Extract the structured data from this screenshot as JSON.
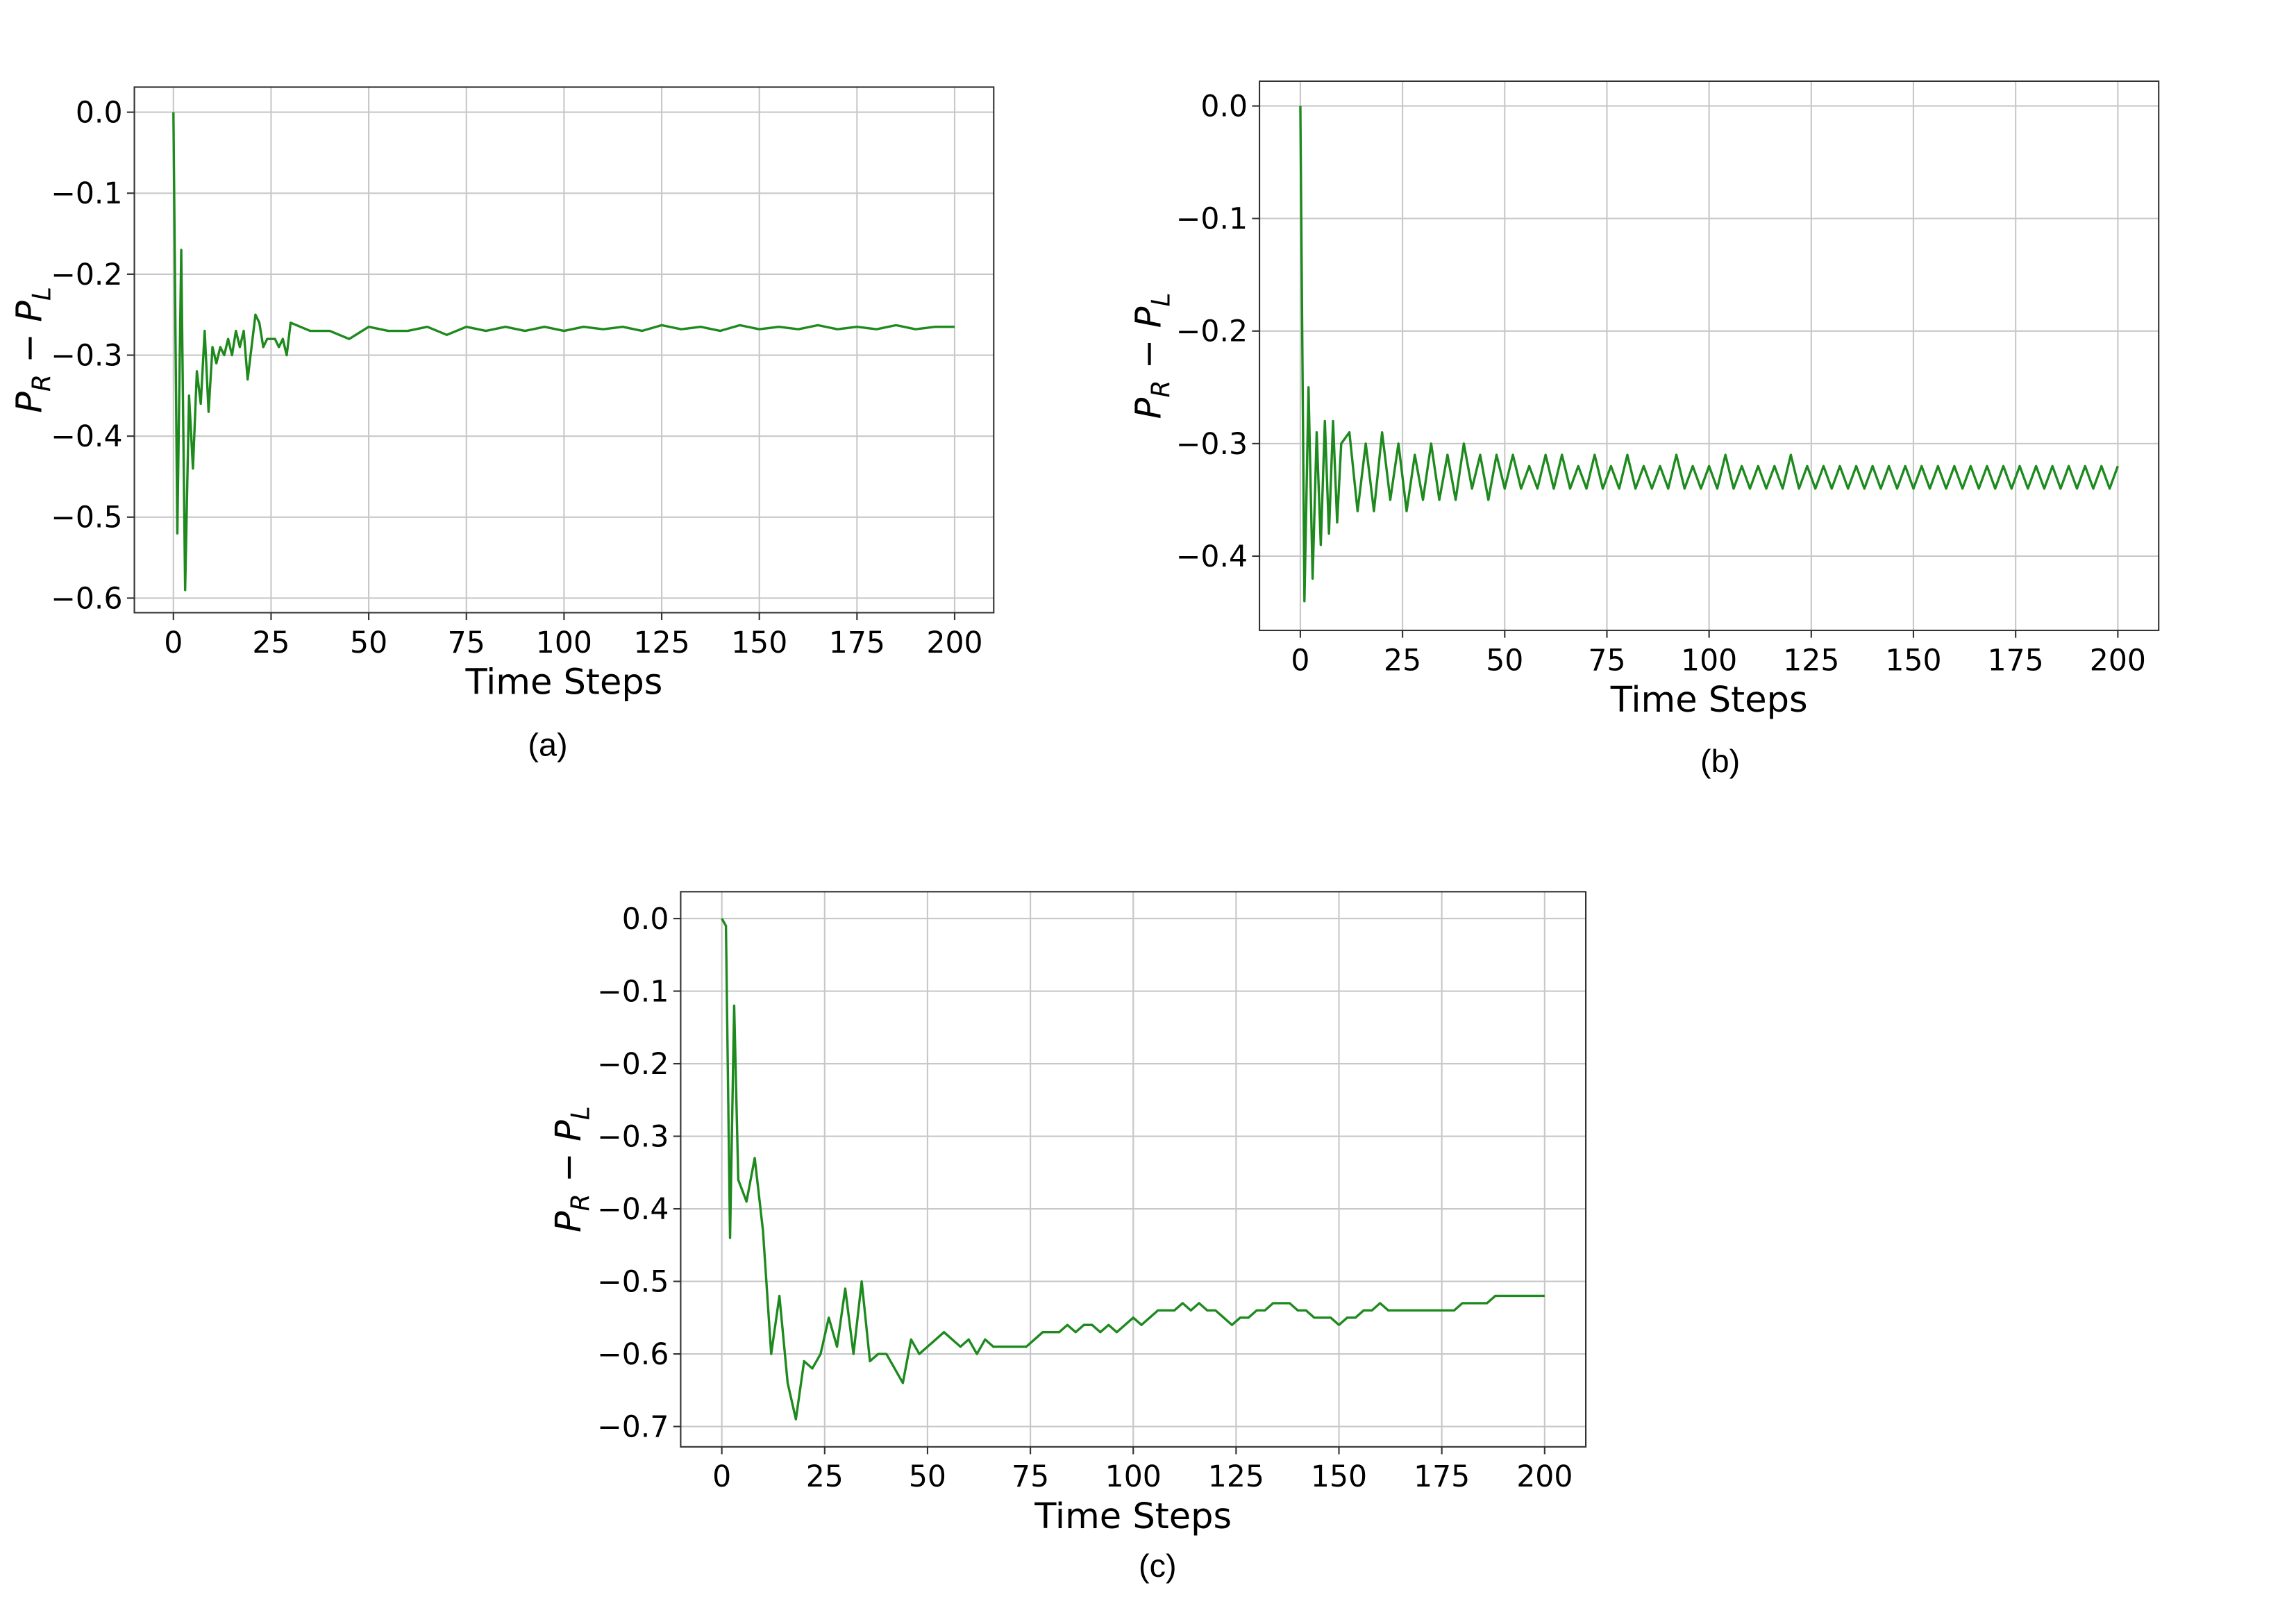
{
  "chart_data": [
    {
      "type": "line",
      "caption": "(a)",
      "xlabel": "Time Steps",
      "ylabel": [
        "P",
        "R",
        " − P",
        "L"
      ],
      "xlim": [
        -10,
        210
      ],
      "ylim": [
        -0.618,
        0.031
      ],
      "grid": true,
      "xticks": [
        0,
        25,
        50,
        75,
        100,
        125,
        150,
        175,
        200
      ],
      "yticks": [
        {
          "value": 0,
          "label": "0.0"
        },
        {
          "value": -0.1,
          "label": "−0.1"
        },
        {
          "value": -0.2,
          "label": "−0.2"
        },
        {
          "value": -0.3,
          "label": "−0.3"
        },
        {
          "value": -0.4,
          "label": "−0.4"
        },
        {
          "value": -0.5,
          "label": "−0.5"
        },
        {
          "value": -0.6,
          "label": "−0.6"
        }
      ],
      "x": [
        0,
        1,
        2,
        3,
        4,
        5,
        6,
        7,
        8,
        9,
        10,
        11,
        12,
        13,
        14,
        15,
        16,
        17,
        18,
        19,
        20,
        21,
        22,
        23,
        24,
        25,
        26,
        27,
        28,
        29,
        30,
        35,
        40,
        45,
        50,
        55,
        60,
        65,
        70,
        75,
        80,
        85,
        90,
        95,
        100,
        105,
        110,
        115,
        120,
        125,
        130,
        135,
        140,
        145,
        150,
        155,
        160,
        165,
        170,
        175,
        180,
        185,
        190,
        195,
        200
      ],
      "series": [
        {
          "color": "#1e8a1e",
          "values": [
            0,
            -0.52,
            -0.17,
            -0.59,
            -0.35,
            -0.44,
            -0.32,
            -0.36,
            -0.27,
            -0.37,
            -0.29,
            -0.31,
            -0.29,
            -0.3,
            -0.28,
            -0.3,
            -0.27,
            -0.29,
            -0.27,
            -0.33,
            -0.29,
            -0.25,
            -0.26,
            -0.29,
            -0.28,
            -0.28,
            -0.28,
            -0.29,
            -0.28,
            -0.3,
            -0.26,
            -0.27,
            -0.27,
            -0.28,
            -0.265,
            -0.27,
            -0.27,
            -0.265,
            -0.275,
            -0.265,
            -0.27,
            -0.265,
            -0.27,
            -0.265,
            -0.27,
            -0.265,
            -0.268,
            -0.265,
            -0.27,
            -0.263,
            -0.268,
            -0.265,
            -0.27,
            -0.263,
            -0.268,
            -0.265,
            -0.268,
            -0.263,
            -0.268,
            -0.265,
            -0.268,
            -0.263,
            -0.268,
            -0.265,
            -0.265
          ]
        }
      ]
    },
    {
      "type": "line",
      "caption": "(b)",
      "xlabel": "Time Steps",
      "ylabel": [
        "P",
        "R",
        " − P",
        "L"
      ],
      "xlim": [
        -10,
        210
      ],
      "ylim": [
        -0.466,
        0.022
      ],
      "grid": true,
      "xticks": [
        0,
        25,
        50,
        75,
        100,
        125,
        150,
        175,
        200
      ],
      "yticks": [
        {
          "value": 0,
          "label": "0.0"
        },
        {
          "value": -0.1,
          "label": "−0.1"
        },
        {
          "value": -0.2,
          "label": "−0.2"
        },
        {
          "value": -0.3,
          "label": "−0.3"
        },
        {
          "value": -0.4,
          "label": "−0.4"
        }
      ],
      "x": [
        0,
        1,
        2,
        3,
        4,
        5,
        6,
        7,
        8,
        9,
        10,
        12,
        14,
        16,
        18,
        20,
        22,
        24,
        26,
        28,
        30,
        32,
        34,
        36,
        38,
        40,
        42,
        44,
        46,
        48,
        50,
        52,
        54,
        56,
        58,
        60,
        62,
        64,
        66,
        68,
        70,
        72,
        74,
        76,
        78,
        80,
        82,
        84,
        86,
        88,
        90,
        92,
        94,
        96,
        98,
        100,
        102,
        104,
        106,
        108,
        110,
        112,
        114,
        116,
        118,
        120,
        122,
        124,
        126,
        128,
        130,
        132,
        134,
        136,
        138,
        140,
        142,
        144,
        146,
        148,
        150,
        152,
        154,
        156,
        158,
        160,
        162,
        164,
        166,
        168,
        170,
        172,
        174,
        176,
        178,
        180,
        182,
        184,
        186,
        188,
        190,
        192,
        194,
        196,
        198,
        200
      ],
      "series": [
        {
          "color": "#1e8a1e",
          "values": [
            0,
            -0.44,
            -0.25,
            -0.42,
            -0.29,
            -0.39,
            -0.28,
            -0.38,
            -0.28,
            -0.37,
            -0.3,
            -0.29,
            -0.36,
            -0.3,
            -0.36,
            -0.29,
            -0.35,
            -0.3,
            -0.36,
            -0.31,
            -0.35,
            -0.3,
            -0.35,
            -0.31,
            -0.35,
            -0.3,
            -0.34,
            -0.31,
            -0.35,
            -0.31,
            -0.34,
            -0.31,
            -0.34,
            -0.32,
            -0.34,
            -0.31,
            -0.34,
            -0.31,
            -0.34,
            -0.32,
            -0.34,
            -0.31,
            -0.34,
            -0.32,
            -0.34,
            -0.31,
            -0.34,
            -0.32,
            -0.34,
            -0.32,
            -0.34,
            -0.31,
            -0.34,
            -0.32,
            -0.34,
            -0.32,
            -0.34,
            -0.31,
            -0.34,
            -0.32,
            -0.34,
            -0.32,
            -0.34,
            -0.32,
            -0.34,
            -0.31,
            -0.34,
            -0.32,
            -0.34,
            -0.32,
            -0.34,
            -0.32,
            -0.34,
            -0.32,
            -0.34,
            -0.32,
            -0.34,
            -0.32,
            -0.34,
            -0.32,
            -0.34,
            -0.32,
            -0.34,
            -0.32,
            -0.34,
            -0.32,
            -0.34,
            -0.32,
            -0.34,
            -0.32,
            -0.34,
            -0.32,
            -0.34,
            -0.32,
            -0.34,
            -0.32,
            -0.34,
            -0.32,
            -0.34,
            -0.32,
            -0.34,
            -0.32,
            -0.34,
            -0.32,
            -0.34,
            -0.32
          ]
        }
      ]
    },
    {
      "type": "line",
      "caption": "(c)",
      "xlabel": "Time Steps",
      "ylabel": [
        "P",
        "R",
        " − P",
        "L"
      ],
      "xlim": [
        -10,
        210
      ],
      "ylim": [
        -0.728,
        0.037
      ],
      "grid": true,
      "xticks": [
        0,
        25,
        50,
        75,
        100,
        125,
        150,
        175,
        200
      ],
      "yticks": [
        {
          "value": 0,
          "label": "0.0"
        },
        {
          "value": -0.1,
          "label": "−0.1"
        },
        {
          "value": -0.2,
          "label": "−0.2"
        },
        {
          "value": -0.3,
          "label": "−0.3"
        },
        {
          "value": -0.4,
          "label": "−0.4"
        },
        {
          "value": -0.5,
          "label": "−0.5"
        },
        {
          "value": -0.6,
          "label": "−0.6"
        },
        {
          "value": -0.7,
          "label": "−0.7"
        }
      ],
      "x": [
        0,
        1,
        2,
        3,
        4,
        6,
        8,
        10,
        12,
        14,
        16,
        18,
        20,
        22,
        24,
        26,
        28,
        30,
        32,
        34,
        36,
        38,
        40,
        42,
        44,
        46,
        48,
        50,
        52,
        54,
        56,
        58,
        60,
        62,
        64,
        66,
        68,
        70,
        72,
        74,
        76,
        78,
        80,
        82,
        84,
        86,
        88,
        90,
        92,
        94,
        96,
        98,
        100,
        102,
        104,
        106,
        108,
        110,
        112,
        114,
        116,
        118,
        120,
        122,
        124,
        126,
        128,
        130,
        132,
        134,
        136,
        138,
        140,
        142,
        144,
        146,
        148,
        150,
        152,
        154,
        156,
        158,
        160,
        162,
        164,
        166,
        168,
        170,
        172,
        174,
        176,
        178,
        180,
        182,
        184,
        186,
        188,
        190,
        192,
        194,
        196,
        198,
        200
      ],
      "series": [
        {
          "color": "#1e8a1e",
          "values": [
            0,
            -0.01,
            -0.44,
            -0.12,
            -0.36,
            -0.39,
            -0.33,
            -0.43,
            -0.6,
            -0.52,
            -0.64,
            -0.69,
            -0.61,
            -0.62,
            -0.6,
            -0.55,
            -0.59,
            -0.51,
            -0.6,
            -0.5,
            -0.61,
            -0.6,
            -0.6,
            -0.62,
            -0.64,
            -0.58,
            -0.6,
            -0.59,
            -0.58,
            -0.57,
            -0.58,
            -0.59,
            -0.58,
            -0.6,
            -0.58,
            -0.59,
            -0.59,
            -0.59,
            -0.59,
            -0.59,
            -0.58,
            -0.57,
            -0.57,
            -0.57,
            -0.56,
            -0.57,
            -0.56,
            -0.56,
            -0.57,
            -0.56,
            -0.57,
            -0.56,
            -0.55,
            -0.56,
            -0.55,
            -0.54,
            -0.54,
            -0.54,
            -0.53,
            -0.54,
            -0.53,
            -0.54,
            -0.54,
            -0.55,
            -0.56,
            -0.55,
            -0.55,
            -0.54,
            -0.54,
            -0.53,
            -0.53,
            -0.53,
            -0.54,
            -0.54,
            -0.55,
            -0.55,
            -0.55,
            -0.56,
            -0.55,
            -0.55,
            -0.54,
            -0.54,
            -0.53,
            -0.54,
            -0.54,
            -0.54,
            -0.54,
            -0.54,
            -0.54,
            -0.54,
            -0.54,
            -0.54,
            -0.53,
            -0.53,
            -0.53,
            -0.53,
            -0.52,
            -0.52,
            -0.52,
            -0.52,
            -0.52,
            -0.52,
            -0.52
          ]
        }
      ]
    }
  ]
}
